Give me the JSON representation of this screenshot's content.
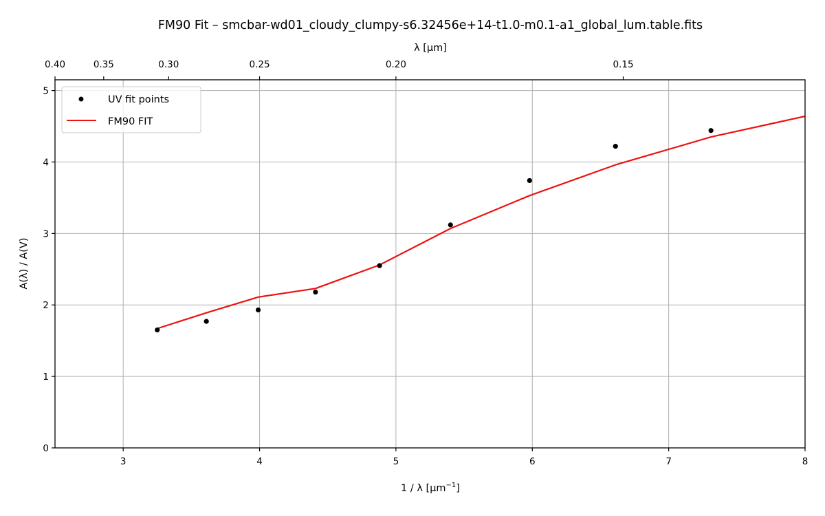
{
  "chart_data": {
    "type": "scatter+line",
    "title": "FM90 Fit – smcbar-wd01_cloudy_clumpy-s6.32456e+14-t1.0-m0.1-a1_global_lum.table.fits",
    "xlabel": "1 / λ [μm",
    "xlabel_sup": "−1",
    "xlabel_end": "]",
    "ylabel": "A(λ) / A(V)",
    "top_xlabel": "λ [μm]",
    "xlim": [
      2.5,
      8.0
    ],
    "ylim": [
      0,
      5.15
    ],
    "xticks": [
      3,
      4,
      5,
      6,
      7,
      8
    ],
    "xtick_labels": [
      "3",
      "4",
      "5",
      "6",
      "7",
      "8"
    ],
    "yticks": [
      0,
      1,
      2,
      3,
      4,
      5
    ],
    "ytick_labels": [
      "0",
      "1",
      "2",
      "3",
      "4",
      "5"
    ],
    "top_ticks": [
      {
        "wavelength": 0.4,
        "label": "0.40"
      },
      {
        "wavelength": 0.35,
        "label": "0.35"
      },
      {
        "wavelength": 0.3,
        "label": "0.30"
      },
      {
        "wavelength": 0.25,
        "label": "0.25"
      },
      {
        "wavelength": 0.2,
        "label": "0.20"
      },
      {
        "wavelength": 0.15,
        "label": "0.15"
      }
    ],
    "grid": true,
    "legend_position": "upper-left",
    "series": [
      {
        "name": "UV fit points",
        "kind": "scatter",
        "color": "#000000",
        "x": [
          3.25,
          3.61,
          3.99,
          4.41,
          4.88,
          5.4,
          5.98,
          6.61,
          7.31
        ],
        "y": [
          1.65,
          1.77,
          1.93,
          2.18,
          2.55,
          3.12,
          3.74,
          4.22,
          4.44
        ]
      },
      {
        "name": "FM90 FIT",
        "kind": "line",
        "color": "#ee1111",
        "x": [
          3.25,
          3.61,
          3.99,
          4.41,
          4.88,
          5.4,
          5.98,
          6.61,
          7.31,
          8.0
        ],
        "y": [
          1.67,
          1.89,
          2.11,
          2.23,
          2.56,
          3.07,
          3.53,
          3.96,
          4.35,
          4.64
        ]
      }
    ]
  }
}
